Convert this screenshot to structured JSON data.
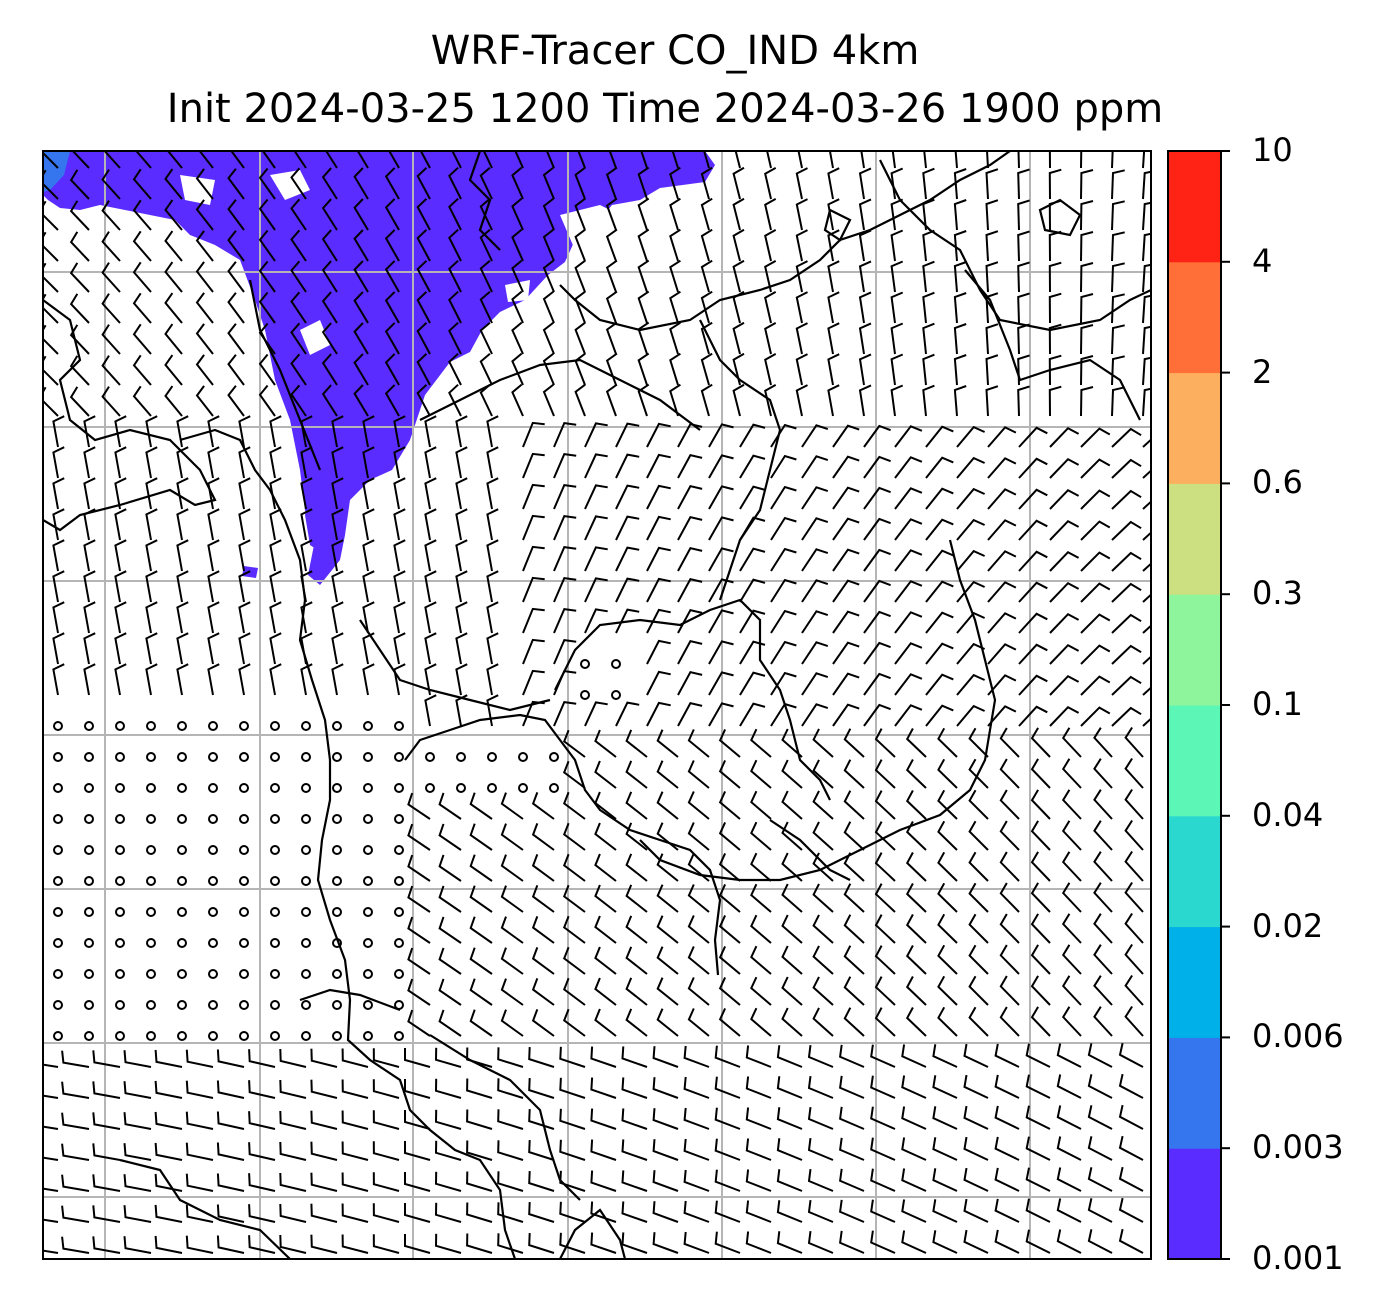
{
  "title": {
    "line1": "WRF-Tracer CO_IND 4km",
    "line2": "Init 2024-03-25 1200 Time 2024-03-26 1900 ppm"
  },
  "colorbar": {
    "levels": [
      "0.001",
      "0.003",
      "0.006",
      "0.02",
      "0.04",
      "0.1",
      "0.3",
      "0.6",
      "2",
      "4",
      "10"
    ],
    "colors": [
      "#5b2cff",
      "#3575ee",
      "#00b0e8",
      "#2ad8cf",
      "#5cf6b7",
      "#8ef59c",
      "#cde081",
      "#fcb05f",
      "#ff6f37",
      "#ff2316"
    ]
  },
  "colors": {
    "tracer_fill": "#5b2cff",
    "grid": "#b5b5b5",
    "lines": "#000000"
  }
}
